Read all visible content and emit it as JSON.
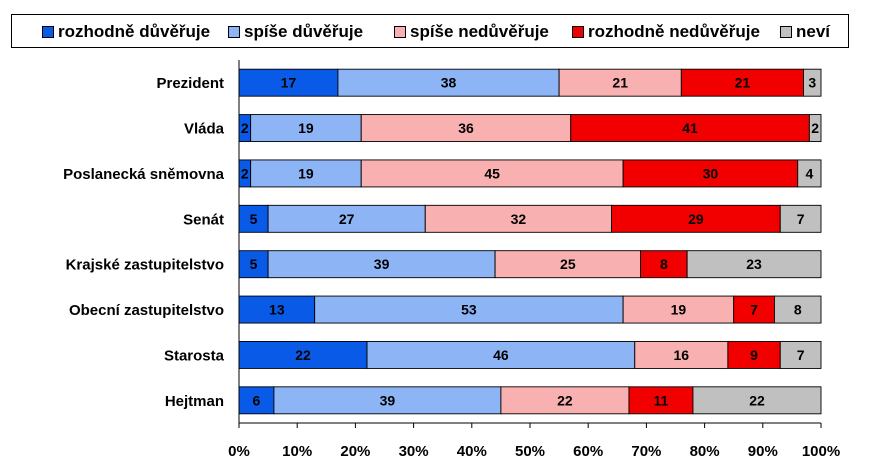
{
  "chart_data": {
    "type": "bar",
    "orientation": "horizontal",
    "stacked": "percent",
    "categories": [
      "Prezident",
      "Vláda",
      "Poslanecká sněmovna",
      "Senát",
      "Krajské zastupitelstvo",
      "Obecní zastupitelstvo",
      "Starosta",
      "Hejtman"
    ],
    "series": [
      {
        "name": "rozhodně důvěřuje",
        "color": "#0a5ae8",
        "values": [
          17,
          2,
          2,
          5,
          5,
          13,
          22,
          6
        ]
      },
      {
        "name": "spíše důvěřuje",
        "color": "#8db4f5",
        "values": [
          38,
          19,
          19,
          27,
          39,
          53,
          46,
          39
        ]
      },
      {
        "name": "spíše nedůvěřuje",
        "color": "#f9b0b0",
        "values": [
          21,
          36,
          45,
          32,
          25,
          19,
          16,
          22
        ]
      },
      {
        "name": "rozhodně nedůvěřuje",
        "color": "#f20000",
        "values": [
          21,
          41,
          30,
          29,
          8,
          7,
          9,
          11
        ]
      },
      {
        "name": "neví",
        "color": "#c0c0c0",
        "values": [
          3,
          2,
          4,
          7,
          23,
          8,
          7,
          22
        ]
      }
    ],
    "xlim": [
      0,
      100
    ],
    "x_ticks": [
      "0%",
      "10%",
      "20%",
      "30%",
      "40%",
      "50%",
      "60%",
      "70%",
      "80%",
      "90%",
      "100%"
    ],
    "grid": false,
    "legend_position": "top"
  }
}
